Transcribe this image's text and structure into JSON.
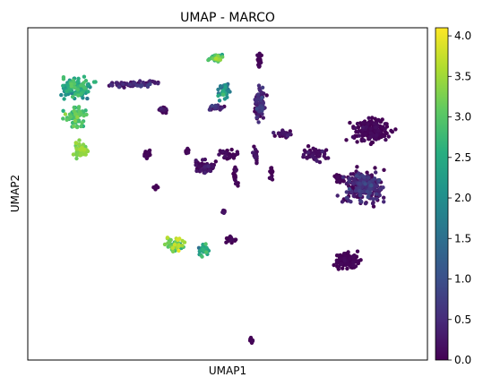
{
  "chart_data": {
    "type": "scatter",
    "title": "UMAP - MARCO",
    "xlabel": "UMAP1",
    "ylabel": "UMAP2",
    "colorbar": {
      "colormap": "viridis",
      "range": [
        0.0,
        4.1
      ],
      "ticks": [
        0.0,
        0.5,
        1.0,
        1.5,
        2.0,
        2.5,
        3.0,
        3.5,
        4.0
      ],
      "tick_labels": [
        "0.0",
        "0.5",
        "1.0",
        "1.5",
        "2.0",
        "2.5",
        "3.0",
        "3.5",
        "4.0"
      ]
    },
    "xlim": [
      0,
      100
    ],
    "ylim": [
      0,
      100
    ],
    "show_ticks": false,
    "grid": false,
    "clusters": [
      {
        "cx": 12,
        "cy": 82,
        "rx": 6,
        "ry": 4,
        "n": 110,
        "value": 2.4,
        "spread": 0.6
      },
      {
        "cx": 12,
        "cy": 73,
        "rx": 4,
        "ry": 5,
        "n": 60,
        "value": 2.9,
        "spread": 0.4
      },
      {
        "cx": 13,
        "cy": 63,
        "rx": 2.5,
        "ry": 4,
        "n": 45,
        "value": 3.3,
        "spread": 0.3
      },
      {
        "cx": 27,
        "cy": 83,
        "rx": 9,
        "ry": 1.5,
        "n": 70,
        "value": 0.3,
        "spread": 0.4
      },
      {
        "cx": 34,
        "cy": 75,
        "rx": 2,
        "ry": 1.5,
        "n": 20,
        "value": 0.1,
        "spread": 0.2
      },
      {
        "cx": 30,
        "cy": 62,
        "rx": 1.5,
        "ry": 2,
        "n": 18,
        "value": 0.0,
        "spread": 0.1
      },
      {
        "cx": 32,
        "cy": 52,
        "rx": 0.8,
        "ry": 0.8,
        "n": 6,
        "value": 0.0,
        "spread": 0.1
      },
      {
        "cx": 47,
        "cy": 91,
        "rx": 3,
        "ry": 1.5,
        "n": 35,
        "value": 3.0,
        "spread": 0.6
      },
      {
        "cx": 49,
        "cy": 81,
        "rx": 2,
        "ry": 4,
        "n": 35,
        "value": 1.8,
        "spread": 0.8
      },
      {
        "cx": 47,
        "cy": 76,
        "rx": 2.5,
        "ry": 1.5,
        "n": 22,
        "value": 0.4,
        "spread": 0.6
      },
      {
        "cx": 58,
        "cy": 77,
        "rx": 2,
        "ry": 8,
        "n": 90,
        "value": 0.3,
        "spread": 0.5
      },
      {
        "cx": 58,
        "cy": 90,
        "rx": 0.8,
        "ry": 4,
        "n": 20,
        "value": 0.0,
        "spread": 0.1
      },
      {
        "cx": 57,
        "cy": 62,
        "rx": 1,
        "ry": 3,
        "n": 20,
        "value": 0.1,
        "spread": 0.2
      },
      {
        "cx": 44,
        "cy": 58,
        "rx": 4,
        "ry": 3,
        "n": 55,
        "value": 0.1,
        "spread": 0.3
      },
      {
        "cx": 40,
        "cy": 63,
        "rx": 1,
        "ry": 1.2,
        "n": 10,
        "value": 0.0,
        "spread": 0.1
      },
      {
        "cx": 50,
        "cy": 62,
        "rx": 4,
        "ry": 2,
        "n": 35,
        "value": 0.0,
        "spread": 0.2
      },
      {
        "cx": 52,
        "cy": 55,
        "rx": 1,
        "ry": 4,
        "n": 20,
        "value": 0.0,
        "spread": 0.2
      },
      {
        "cx": 49,
        "cy": 45,
        "rx": 0.8,
        "ry": 1.5,
        "n": 8,
        "value": 0.1,
        "spread": 0.2
      },
      {
        "cx": 61,
        "cy": 56,
        "rx": 0.8,
        "ry": 3,
        "n": 14,
        "value": 0.0,
        "spread": 0.1
      },
      {
        "cx": 64,
        "cy": 68,
        "rx": 3,
        "ry": 1.5,
        "n": 35,
        "value": 0.1,
        "spread": 0.3
      },
      {
        "cx": 72,
        "cy": 62,
        "rx": 4,
        "ry": 3,
        "n": 55,
        "value": 0.1,
        "spread": 0.3
      },
      {
        "cx": 86,
        "cy": 69,
        "rx": 7,
        "ry": 5,
        "n": 170,
        "value": 0.0,
        "spread": 0.2
      },
      {
        "cx": 84,
        "cy": 52,
        "rx": 7,
        "ry": 7,
        "n": 260,
        "value": 0.3,
        "spread": 0.6
      },
      {
        "cx": 78,
        "cy": 55,
        "rx": 2,
        "ry": 3,
        "n": 20,
        "value": 0.0,
        "spread": 0.1
      },
      {
        "cx": 80,
        "cy": 30,
        "rx": 4,
        "ry": 3.5,
        "n": 110,
        "value": 0.0,
        "spread": 0.1
      },
      {
        "cx": 37,
        "cy": 35,
        "rx": 3.5,
        "ry": 3,
        "n": 55,
        "value": 3.1,
        "spread": 0.9
      },
      {
        "cx": 44,
        "cy": 33,
        "rx": 2,
        "ry": 3,
        "n": 30,
        "value": 2.3,
        "spread": 0.8
      },
      {
        "cx": 51,
        "cy": 36,
        "rx": 2,
        "ry": 1.5,
        "n": 14,
        "value": 0.0,
        "spread": 0.1
      },
      {
        "cx": 56,
        "cy": 6,
        "rx": 0.7,
        "ry": 1,
        "n": 8,
        "value": 0.0,
        "spread": 0.1
      }
    ]
  }
}
